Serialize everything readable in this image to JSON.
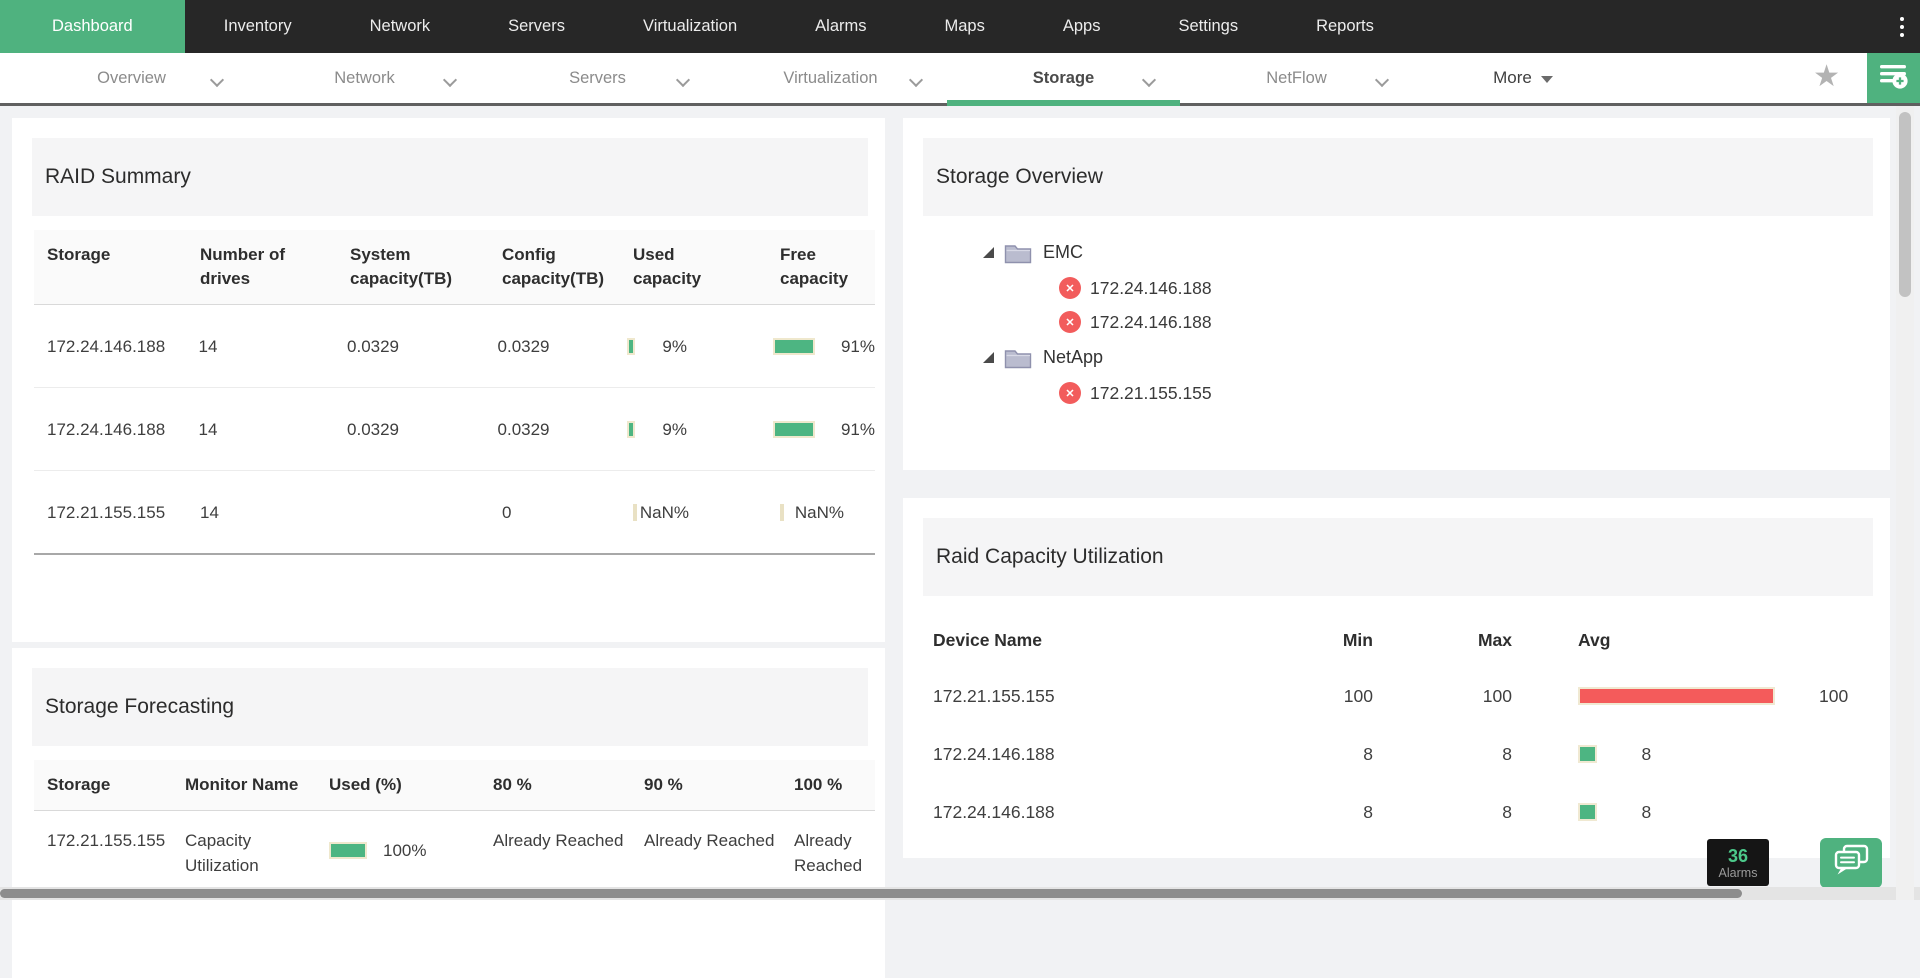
{
  "topnav": {
    "items": [
      {
        "label": "Dashboard",
        "active": true
      },
      {
        "label": "Inventory",
        "active": false
      },
      {
        "label": "Network",
        "active": false
      },
      {
        "label": "Servers",
        "active": false
      },
      {
        "label": "Virtualization",
        "active": false
      },
      {
        "label": "Alarms",
        "active": false
      },
      {
        "label": "Maps",
        "active": false
      },
      {
        "label": "Apps",
        "active": false
      },
      {
        "label": "Settings",
        "active": false
      },
      {
        "label": "Reports",
        "active": false
      }
    ]
  },
  "subnav": {
    "tabs": [
      {
        "label": "Overview",
        "active": false
      },
      {
        "label": "Network",
        "active": false
      },
      {
        "label": "Servers",
        "active": false
      },
      {
        "label": "Virtualization",
        "active": false
      },
      {
        "label": "Storage",
        "active": true
      },
      {
        "label": "NetFlow",
        "active": false
      }
    ],
    "more_label": "More"
  },
  "raid_summary": {
    "title": "RAID Summary",
    "columns": [
      "Storage",
      "Number of drives",
      "System capacity(TB)",
      "Config capacity(TB)",
      "Used capacity",
      "Free capacity"
    ],
    "rows": [
      {
        "storage": "172.24.146.188",
        "drives": "14",
        "system": "0.0329",
        "config": "0.0329",
        "used": {
          "pct": 9,
          "label": "9%"
        },
        "free": {
          "pct": 91,
          "label": "91%"
        }
      },
      {
        "storage": "172.24.146.188",
        "drives": "14",
        "system": "0.0329",
        "config": "0.0329",
        "used": {
          "pct": 9,
          "label": "9%"
        },
        "free": {
          "pct": 91,
          "label": "91%"
        }
      },
      {
        "storage": "172.21.155.155",
        "drives": "14",
        "system": "",
        "config": "0",
        "used": {
          "pct": null,
          "label": "NaN%"
        },
        "free": {
          "pct": null,
          "label": "NaN%"
        }
      }
    ]
  },
  "storage_forecasting": {
    "title": "Storage Forecasting",
    "columns": [
      "Storage",
      "Monitor Name",
      "Used (%)",
      "80 %",
      "90 %",
      "100 %"
    ],
    "rows": [
      {
        "storage": "172.21.155.155",
        "monitor": "Capacity Utilization",
        "used": {
          "pct": 100,
          "label": "100%"
        },
        "t80": "Already Reached",
        "t90": "Already Reached",
        "t100": "Already Reached"
      }
    ]
  },
  "storage_overview": {
    "title": "Storage Overview",
    "groups": [
      {
        "name": "EMC",
        "devices": [
          "172.24.146.188",
          "172.24.146.188"
        ]
      },
      {
        "name": "NetApp",
        "devices": [
          "172.21.155.155"
        ]
      }
    ]
  },
  "raid_capacity": {
    "title": "Raid Capacity Utilization",
    "columns": [
      "Device Name",
      "Min",
      "Max",
      "Avg"
    ],
    "rows": [
      {
        "device": "172.21.155.155",
        "min": "100",
        "max": "100",
        "avg": 100,
        "avg_label": "100",
        "color": "red"
      },
      {
        "device": "172.24.146.188",
        "min": "8",
        "max": "8",
        "avg": 8,
        "avg_label": "8",
        "color": "green"
      },
      {
        "device": "172.24.146.188",
        "min": "8",
        "max": "8",
        "avg": 8,
        "avg_label": "8",
        "color": "green"
      }
    ]
  },
  "footer": {
    "alarms_count": "36",
    "alarms_label": "Alarms"
  },
  "icons": {
    "error": "✕",
    "star": "★"
  },
  "colors": {
    "accent_green": "#4fb27f",
    "bar_green": "#4db582",
    "bar_red": "#f45b5b",
    "error_red": "#f25c5c",
    "alarm_green": "#4cc98a",
    "topbar_bg": "#272727"
  }
}
